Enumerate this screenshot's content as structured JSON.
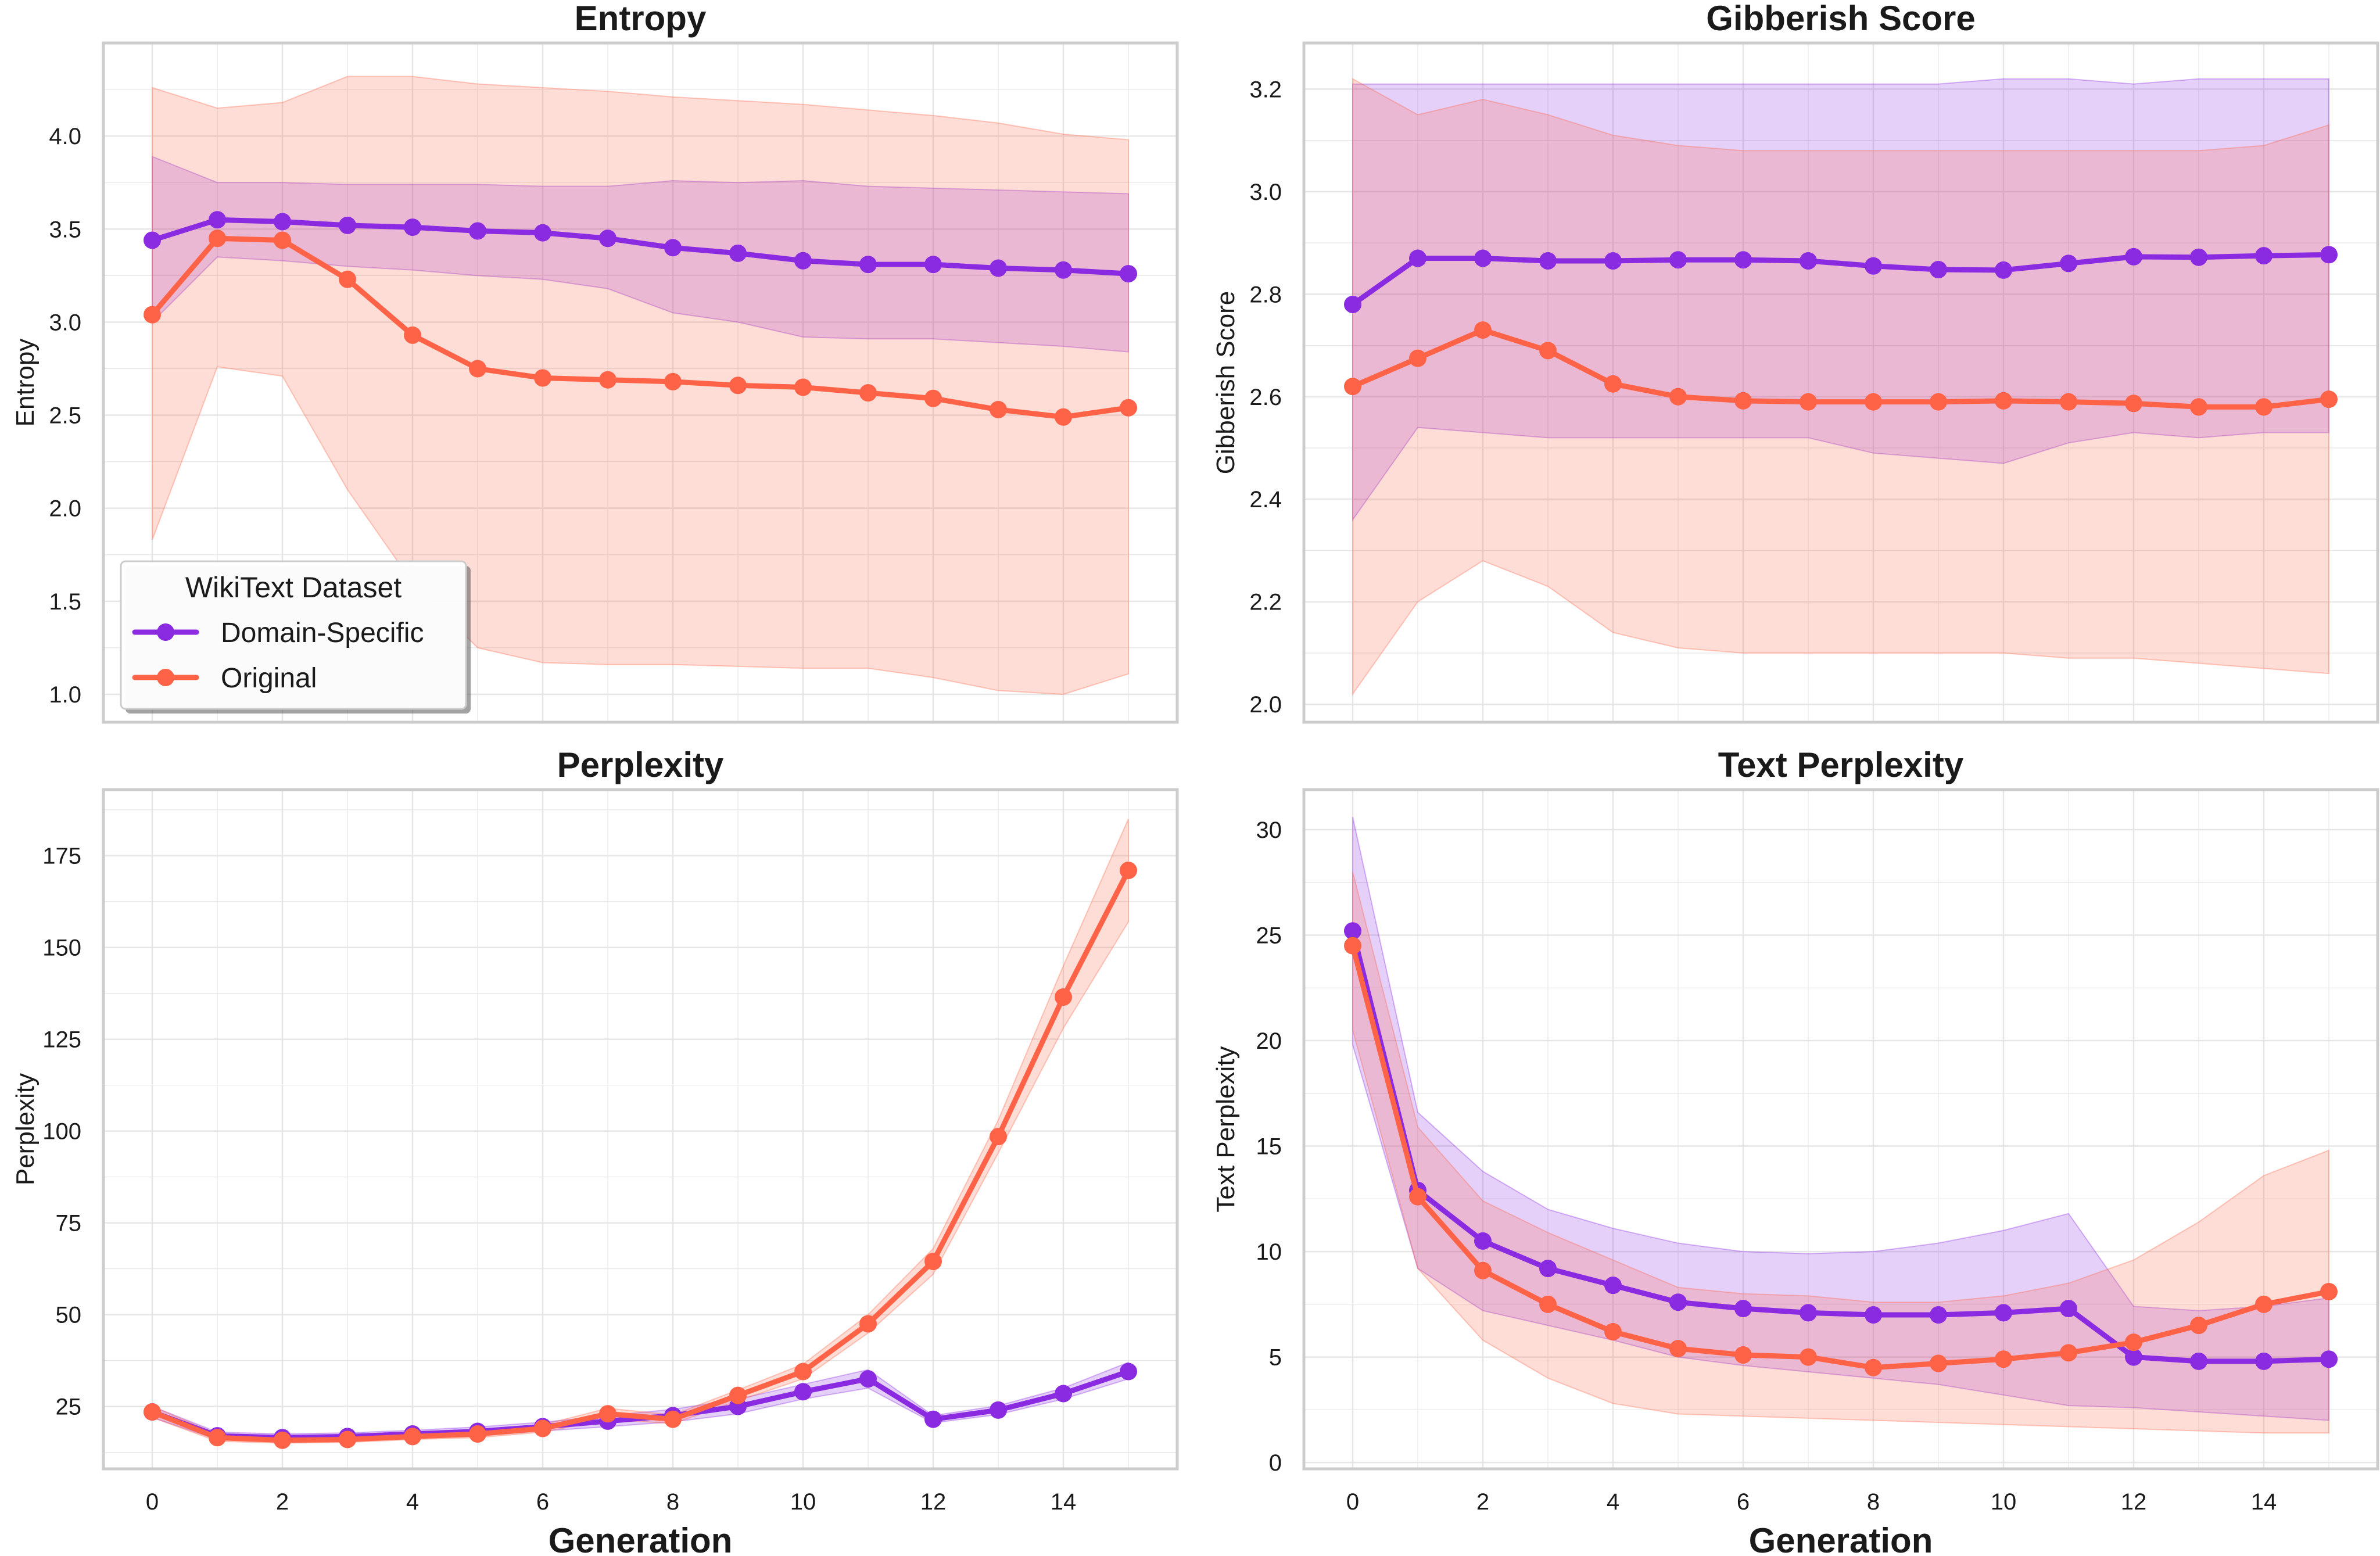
{
  "colors": {
    "domain": "#8a2be2",
    "original": "#ff6347",
    "grid": "#e6e6e6",
    "frame": "#cccccc"
  },
  "legend": {
    "title": "WikiText Dataset",
    "entries": [
      {
        "key": "domain",
        "label": "Domain-Specific"
      },
      {
        "key": "original",
        "label": "Original"
      }
    ]
  },
  "chart_data": [
    {
      "type": "line",
      "title": "Entropy",
      "xlabel": "",
      "ylabel": "Entropy",
      "x": [
        0,
        1,
        2,
        3,
        4,
        5,
        6,
        7,
        8,
        9,
        10,
        11,
        12,
        13,
        14,
        15
      ],
      "xticks": [
        0,
        2,
        4,
        6,
        8,
        10,
        12,
        14
      ],
      "xtick_labels": false,
      "xlim": [
        -0.75,
        15.75
      ],
      "ylim": [
        0.85,
        4.5
      ],
      "yticks": [
        1.0,
        1.5,
        2.0,
        2.5,
        3.0,
        3.5,
        4.0
      ],
      "ytick_format": "0.0",
      "legend": true,
      "series": [
        {
          "key": "domain",
          "name": "Domain-Specific",
          "values": [
            3.44,
            3.55,
            3.54,
            3.52,
            3.51,
            3.49,
            3.48,
            3.45,
            3.4,
            3.37,
            3.33,
            3.31,
            3.31,
            3.29,
            3.28,
            3.26
          ],
          "lower": [
            3.0,
            3.35,
            3.33,
            3.3,
            3.28,
            3.25,
            3.23,
            3.18,
            3.05,
            3.0,
            2.92,
            2.91,
            2.91,
            2.89,
            2.87,
            2.84
          ],
          "upper": [
            3.89,
            3.75,
            3.75,
            3.74,
            3.74,
            3.74,
            3.73,
            3.73,
            3.76,
            3.75,
            3.76,
            3.73,
            3.72,
            3.71,
            3.7,
            3.69
          ]
        },
        {
          "key": "original",
          "name": "Original",
          "values": [
            3.04,
            3.45,
            3.44,
            3.23,
            2.93,
            2.75,
            2.7,
            2.69,
            2.68,
            2.66,
            2.65,
            2.62,
            2.59,
            2.53,
            2.49,
            2.54
          ],
          "lower": [
            1.83,
            2.76,
            2.71,
            2.1,
            1.6,
            1.25,
            1.17,
            1.16,
            1.16,
            1.15,
            1.14,
            1.14,
            1.09,
            1.02,
            1.0,
            1.11
          ],
          "upper": [
            4.26,
            4.15,
            4.18,
            4.32,
            4.32,
            4.28,
            4.26,
            4.24,
            4.21,
            4.19,
            4.17,
            4.14,
            4.11,
            4.07,
            4.01,
            3.98
          ]
        }
      ]
    },
    {
      "type": "line",
      "title": "Gibberish Score",
      "xlabel": "",
      "ylabel": "Gibberish Score",
      "x": [
        0,
        1,
        2,
        3,
        4,
        5,
        6,
        7,
        8,
        9,
        10,
        11,
        12,
        13,
        14,
        15
      ],
      "xticks": [
        0,
        2,
        4,
        6,
        8,
        10,
        12,
        14
      ],
      "xtick_labels": false,
      "xlim": [
        -0.75,
        15.75
      ],
      "ylim": [
        1.965,
        3.29
      ],
      "yticks": [
        2.0,
        2.2,
        2.4,
        2.6,
        2.8,
        3.0,
        3.2
      ],
      "ytick_format": "0.0",
      "legend": false,
      "series": [
        {
          "key": "domain",
          "name": "Domain-Specific",
          "values": [
            2.78,
            2.87,
            2.87,
            2.865,
            2.865,
            2.867,
            2.867,
            2.865,
            2.855,
            2.848,
            2.847,
            2.86,
            2.873,
            2.872,
            2.875,
            2.877
          ],
          "lower": [
            2.36,
            2.54,
            2.53,
            2.52,
            2.52,
            2.52,
            2.52,
            2.52,
            2.49,
            2.48,
            2.47,
            2.51,
            2.53,
            2.52,
            2.53,
            2.53
          ],
          "upper": [
            3.21,
            3.21,
            3.21,
            3.21,
            3.21,
            3.21,
            3.21,
            3.21,
            3.21,
            3.21,
            3.22,
            3.22,
            3.21,
            3.22,
            3.22,
            3.22
          ]
        },
        {
          "key": "original",
          "name": "Original",
          "values": [
            2.62,
            2.675,
            2.73,
            2.69,
            2.625,
            2.6,
            2.592,
            2.59,
            2.59,
            2.59,
            2.592,
            2.59,
            2.587,
            2.58,
            2.58,
            2.595
          ],
          "lower": [
            2.02,
            2.2,
            2.28,
            2.23,
            2.14,
            2.11,
            2.1,
            2.1,
            2.1,
            2.1,
            2.1,
            2.09,
            2.09,
            2.08,
            2.07,
            2.06
          ],
          "upper": [
            3.22,
            3.15,
            3.18,
            3.15,
            3.11,
            3.09,
            3.08,
            3.08,
            3.08,
            3.08,
            3.08,
            3.08,
            3.08,
            3.08,
            3.09,
            3.13
          ]
        }
      ]
    },
    {
      "type": "line",
      "title": "Perplexity",
      "xlabel": "Generation",
      "ylabel": "Perplexity",
      "x": [
        0,
        1,
        2,
        3,
        4,
        5,
        6,
        7,
        8,
        9,
        10,
        11,
        12,
        13,
        14,
        15
      ],
      "xticks": [
        0,
        2,
        4,
        6,
        8,
        10,
        12,
        14
      ],
      "xtick_labels": true,
      "xlim": [
        -0.75,
        15.75
      ],
      "ylim": [
        8,
        193
      ],
      "yticks": [
        25,
        50,
        75,
        100,
        125,
        150,
        175
      ],
      "ytick_format": "0",
      "legend": false,
      "series": [
        {
          "key": "domain",
          "name": "Domain-Specific",
          "values": [
            23.5,
            17.0,
            16.5,
            16.8,
            17.5,
            18.2,
            19.5,
            21.0,
            22.5,
            25.0,
            29.0,
            32.5,
            21.5,
            24.0,
            28.5,
            34.5
          ],
          "lower": [
            22.0,
            16.0,
            15.5,
            15.8,
            16.5,
            17.0,
            18.3,
            19.5,
            20.8,
            23.0,
            27.0,
            30.0,
            20.5,
            22.8,
            27.0,
            32.5
          ],
          "upper": [
            25.0,
            18.0,
            17.5,
            17.8,
            18.5,
            19.4,
            20.7,
            22.5,
            24.2,
            27.0,
            31.0,
            35.0,
            22.5,
            25.2,
            30.0,
            37.0
          ]
        },
        {
          "key": "original",
          "name": "Original",
          "values": [
            23.5,
            16.5,
            15.8,
            16.0,
            16.8,
            17.5,
            19.0,
            23.0,
            21.5,
            28.0,
            34.5,
            47.5,
            64.5,
            98.5,
            136.5,
            171.0
          ],
          "lower": [
            22.0,
            15.5,
            15.0,
            15.2,
            16.0,
            16.5,
            18.0,
            21.5,
            20.3,
            26.5,
            32.5,
            45.0,
            61.0,
            94.0,
            128.0,
            157.0
          ],
          "upper": [
            25.0,
            17.5,
            16.6,
            16.8,
            17.6,
            18.5,
            20.0,
            24.5,
            22.7,
            29.5,
            36.5,
            50.0,
            68.0,
            103.0,
            145.0,
            185.0
          ]
        }
      ]
    },
    {
      "type": "line",
      "title": "Text Perplexity",
      "xlabel": "Generation",
      "ylabel": "Text Perplexity",
      "x": [
        0,
        1,
        2,
        3,
        4,
        5,
        6,
        7,
        8,
        9,
        10,
        11,
        12,
        13,
        14,
        15
      ],
      "xticks": [
        0,
        2,
        4,
        6,
        8,
        10,
        12,
        14
      ],
      "xtick_labels": true,
      "xlim": [
        -0.75,
        15.75
      ],
      "ylim": [
        -0.3,
        31.9
      ],
      "yticks": [
        0,
        5,
        10,
        15,
        20,
        25,
        30
      ],
      "ytick_format": "0",
      "legend": false,
      "series": [
        {
          "key": "domain",
          "name": "Domain-Specific",
          "values": [
            25.2,
            12.9,
            10.5,
            9.2,
            8.4,
            7.6,
            7.3,
            7.1,
            7.0,
            7.0,
            7.1,
            7.3,
            5.0,
            4.8,
            4.8,
            4.9
          ],
          "lower": [
            19.8,
            9.2,
            7.2,
            6.5,
            5.8,
            5.0,
            4.6,
            4.3,
            4.0,
            3.7,
            3.2,
            2.7,
            2.6,
            2.4,
            2.2,
            2.0
          ],
          "upper": [
            30.6,
            16.6,
            13.8,
            12.0,
            11.1,
            10.4,
            10.0,
            9.9,
            10.0,
            10.4,
            11.0,
            11.8,
            7.4,
            7.2,
            7.4,
            7.8
          ]
        },
        {
          "key": "original",
          "name": "Original",
          "values": [
            24.5,
            12.6,
            9.1,
            7.5,
            6.2,
            5.4,
            5.1,
            5.0,
            4.5,
            4.7,
            4.9,
            5.2,
            5.7,
            6.5,
            7.5,
            8.1
          ],
          "lower": [
            20.5,
            9.2,
            5.8,
            4.0,
            2.8,
            2.3,
            2.2,
            2.1,
            2.0,
            1.9,
            1.8,
            1.7,
            1.6,
            1.5,
            1.4,
            1.4
          ],
          "upper": [
            28.0,
            15.9,
            12.4,
            10.9,
            9.6,
            8.3,
            8.0,
            7.9,
            7.6,
            7.6,
            7.9,
            8.5,
            9.6,
            11.4,
            13.6,
            14.8
          ]
        }
      ]
    }
  ]
}
